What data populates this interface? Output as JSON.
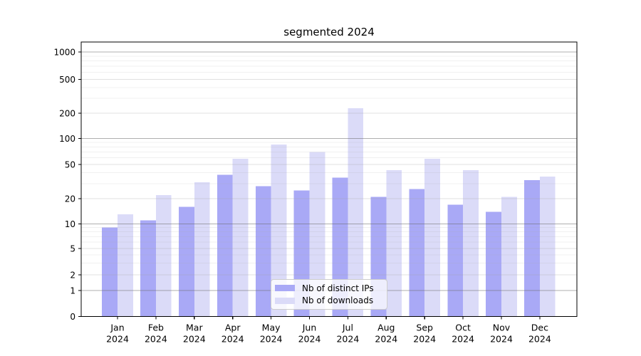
{
  "title": "segmented 2024",
  "chart_data": {
    "type": "bar",
    "title": "segmented 2024",
    "categories": [
      "Jan 2024",
      "Feb 2024",
      "Mar 2024",
      "Apr 2024",
      "May 2024",
      "Jun 2024",
      "Jul 2024",
      "Aug 2024",
      "Sep 2024",
      "Oct 2024",
      "Nov 2024",
      "Dec 2024"
    ],
    "month_labels": [
      "Jan",
      "Feb",
      "Mar",
      "Apr",
      "May",
      "Jun",
      "Jul",
      "Aug",
      "Sep",
      "Oct",
      "Nov",
      "Dec"
    ],
    "year_label": "2024",
    "series": [
      {
        "name": "Nb of distinct IPs",
        "color": "#a9a9f6",
        "values": [
          9,
          11,
          16,
          38,
          28,
          25,
          35,
          21,
          26,
          17,
          14,
          33
        ]
      },
      {
        "name": "Nb of downloads",
        "color": "#dbdbf8",
        "values": [
          13,
          22,
          31,
          58,
          85,
          70,
          230,
          43,
          58,
          43,
          21,
          36
        ]
      }
    ],
    "y_ticks": [
      0,
      1,
      2,
      5,
      10,
      20,
      50,
      100,
      200,
      500,
      1000
    ],
    "y_minor_ticks": [
      3,
      4,
      6,
      7,
      8,
      9,
      30,
      40,
      60,
      70,
      80,
      90,
      300,
      400,
      600,
      700,
      800,
      900
    ],
    "y_scale": "symlog (1-2-5 decades, linear below 1)",
    "ylim": [
      0,
      1300
    ],
    "xlabel": "",
    "ylabel": "",
    "grid": true,
    "legend_position": "lower center",
    "axis_color": "#000000",
    "grid_major_color": "#b4b4b4",
    "grid_medium_color": "#e0e0e0",
    "grid_minor_color": "#f1f1f1"
  }
}
